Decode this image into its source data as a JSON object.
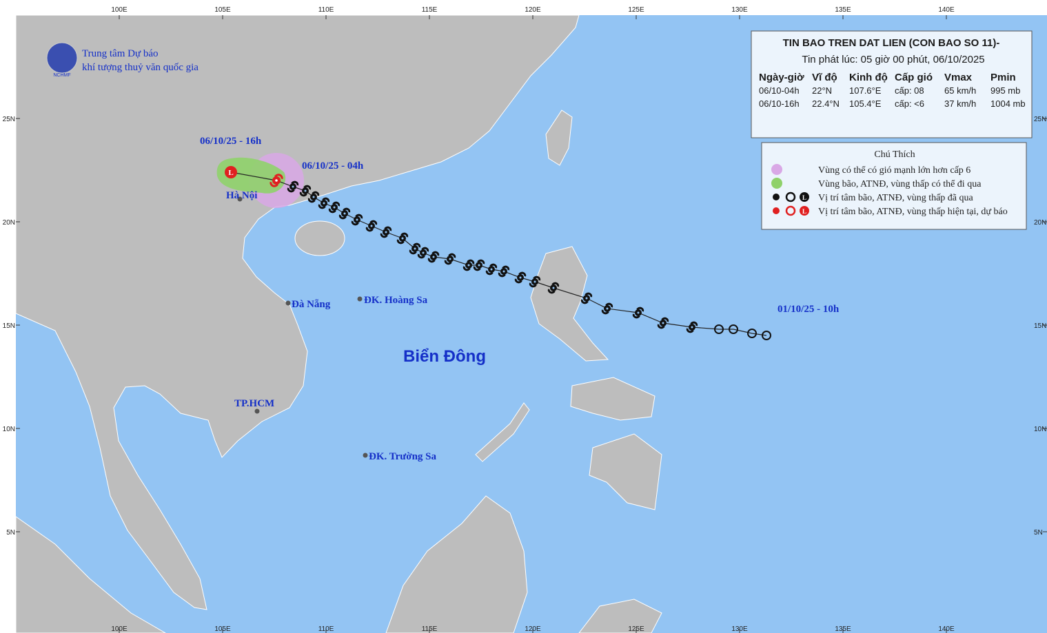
{
  "logo": {
    "mark": "NCHMF",
    "line1": "Trung tâm Dự báo",
    "line2": "khí tượng thuỷ văn quốc gia"
  },
  "map": {
    "lon_ticks": [
      {
        "value": 100,
        "label": "100E"
      },
      {
        "value": 105,
        "label": "105E"
      },
      {
        "value": 110,
        "label": "110E"
      },
      {
        "value": 115,
        "label": "115E"
      },
      {
        "value": 120,
        "label": "120E"
      },
      {
        "value": 125,
        "label": "125E"
      },
      {
        "value": 130,
        "label": "130E"
      },
      {
        "value": 135,
        "label": "135E"
      },
      {
        "value": 140,
        "label": "140E"
      }
    ],
    "lat_ticks": [
      {
        "value": 5,
        "label": "5N"
      },
      {
        "value": 10,
        "label": "10N"
      },
      {
        "value": 15,
        "label": "15N"
      },
      {
        "value": 20,
        "label": "20N"
      },
      {
        "value": 25,
        "label": "25N"
      }
    ],
    "places": [
      "Hà Nội",
      "Đà Nẵng",
      "ĐK. Hoàng Sa",
      "TP.HCM",
      "ĐK. Trường Sa"
    ],
    "sea_label": "Biển Đông",
    "time_labels": [
      "06/10/25 - 16h",
      "06/10/25 - 04h",
      "01/10/25 - 10h"
    ],
    "track": [
      {
        "lon": 131.3,
        "lat": 14.5,
        "kind": "past_depression"
      },
      {
        "lon": 130.6,
        "lat": 14.6,
        "kind": "past_depression"
      },
      {
        "lon": 129.7,
        "lat": 14.8,
        "kind": "past_depression"
      },
      {
        "lon": 129.0,
        "lat": 14.8,
        "kind": "past_depression"
      },
      {
        "lon": 127.7,
        "lat": 14.9,
        "kind": "past_storm"
      },
      {
        "lon": 126.3,
        "lat": 15.1,
        "kind": "past_storm"
      },
      {
        "lon": 125.1,
        "lat": 15.6,
        "kind": "past_storm"
      },
      {
        "lon": 123.6,
        "lat": 15.8,
        "kind": "past_storm"
      },
      {
        "lon": 122.6,
        "lat": 16.3,
        "kind": "past_storm"
      },
      {
        "lon": 121.0,
        "lat": 16.8,
        "kind": "past_storm"
      },
      {
        "lon": 120.1,
        "lat": 17.1,
        "kind": "past_storm"
      },
      {
        "lon": 119.4,
        "lat": 17.3,
        "kind": "past_storm"
      },
      {
        "lon": 118.6,
        "lat": 17.6,
        "kind": "past_storm"
      },
      {
        "lon": 118.0,
        "lat": 17.7,
        "kind": "past_storm"
      },
      {
        "lon": 117.4,
        "lat": 17.9,
        "kind": "past_storm"
      },
      {
        "lon": 116.9,
        "lat": 17.9,
        "kind": "past_storm"
      },
      {
        "lon": 116.0,
        "lat": 18.2,
        "kind": "past_storm"
      },
      {
        "lon": 115.2,
        "lat": 18.3,
        "kind": "past_storm"
      },
      {
        "lon": 114.7,
        "lat": 18.5,
        "kind": "past_storm"
      },
      {
        "lon": 114.3,
        "lat": 18.7,
        "kind": "past_storm"
      },
      {
        "lon": 113.7,
        "lat": 19.2,
        "kind": "past_storm"
      },
      {
        "lon": 112.9,
        "lat": 19.5,
        "kind": "past_storm"
      },
      {
        "lon": 112.2,
        "lat": 19.8,
        "kind": "past_storm"
      },
      {
        "lon": 111.5,
        "lat": 20.1,
        "kind": "past_storm"
      },
      {
        "lon": 110.9,
        "lat": 20.4,
        "kind": "past_storm"
      },
      {
        "lon": 110.4,
        "lat": 20.7,
        "kind": "past_storm"
      },
      {
        "lon": 109.9,
        "lat": 20.9,
        "kind": "past_storm"
      },
      {
        "lon": 109.4,
        "lat": 21.2,
        "kind": "past_storm"
      },
      {
        "lon": 109.0,
        "lat": 21.5,
        "kind": "past_storm"
      },
      {
        "lon": 108.4,
        "lat": 21.7,
        "kind": "past_storm"
      },
      {
        "lon": 107.6,
        "lat": 22.0,
        "kind": "current_storm"
      },
      {
        "lon": 105.4,
        "lat": 22.4,
        "kind": "forecast_low"
      }
    ]
  },
  "info": {
    "title": "TIN BAO TREN DAT LIEN (CON BAO SO 11)-",
    "subtitle": "Tin phát lúc: 05 giờ 00 phút, 06/10/2025",
    "header": [
      "Ngày-giờ",
      "Vĩ độ",
      "Kinh độ",
      "Cấp gió",
      "Vmax",
      "Pmin"
    ],
    "rows": [
      [
        "06/10-04h",
        "22°N",
        "107.6°E",
        "cấp: 08",
        "65 km/h",
        "995 mb"
      ],
      [
        "06/10-16h",
        "22.4°N",
        "105.4°E",
        "cấp: <6",
        "37 km/h",
        "1004 mb"
      ]
    ]
  },
  "legend": {
    "title": "Chú Thích",
    "items": [
      "Vùng có thể có gió mạnh lớn hơn cấp 6",
      "Vùng bão, ATNĐ, vùng thấp có thể đi qua",
      "Vị trí tâm bão, ATNĐ, vùng thấp đã qua",
      "Vị trí tâm bão, ATNĐ, vùng thấp hiện tại, dự báo"
    ]
  }
}
